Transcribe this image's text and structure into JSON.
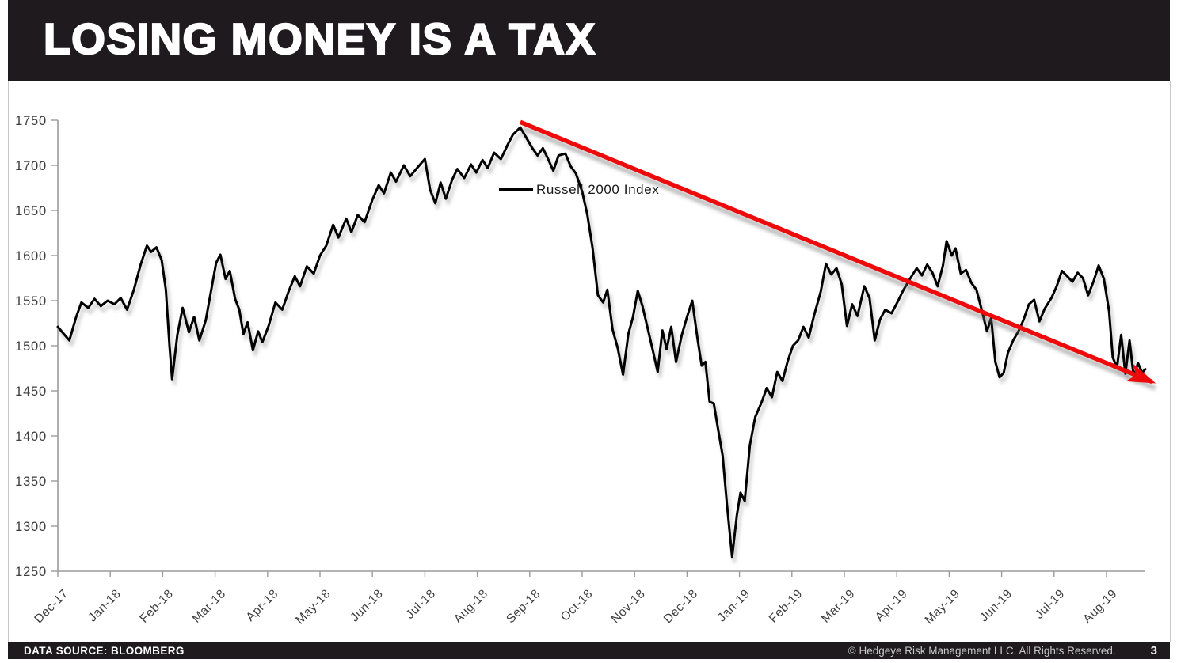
{
  "header": {
    "title": "LOSING MONEY IS A TAX"
  },
  "footer": {
    "data_source": "DATA SOURCE: BLOOMBERG",
    "copyright": "© Hedgeye Risk Management LLC. All Rights Reserved.",
    "page_number": "3"
  },
  "colors": {
    "bar_background": "#1e1a1e",
    "series_line": "#000000",
    "trend_arrow": "#ee0a0a",
    "axis": "#9b9b9b",
    "tick_text": "#3e3e3e"
  },
  "chart_data": {
    "type": "line",
    "title": "",
    "xlabel": "",
    "ylabel": "",
    "grid": false,
    "legend": {
      "label": "Russell 2000 Index",
      "position": "top-center"
    },
    "ylim": [
      1250,
      1750
    ],
    "y_ticks": [
      1250,
      1300,
      1350,
      1400,
      1450,
      1500,
      1550,
      1600,
      1650,
      1700,
      1750
    ],
    "x_tick_labels": [
      "Dec-17",
      "Jan-18",
      "Feb-18",
      "Mar-18",
      "Apr-18",
      "May-18",
      "Jun-18",
      "Jul-18",
      "Aug-18",
      "Sep-18",
      "Oct-18",
      "Nov-18",
      "Dec-18",
      "Jan-19",
      "Feb-19",
      "Mar-19",
      "Apr-19",
      "May-19",
      "Jun-19",
      "Jul-19",
      "Aug-19"
    ],
    "x_unit": "months_since_Dec-17",
    "series": [
      {
        "name": "Russell 2000 Index",
        "color": "#000000",
        "points": [
          [
            0,
            1521
          ],
          [
            0.1,
            1514
          ],
          [
            0.22,
            1506
          ],
          [
            0.35,
            1532
          ],
          [
            0.45,
            1548
          ],
          [
            0.58,
            1542
          ],
          [
            0.7,
            1552
          ],
          [
            0.82,
            1544
          ],
          [
            0.95,
            1550
          ],
          [
            1.08,
            1546
          ],
          [
            1.2,
            1553
          ],
          [
            1.32,
            1540
          ],
          [
            1.45,
            1562
          ],
          [
            1.58,
            1590
          ],
          [
            1.7,
            1611
          ],
          [
            1.78,
            1604
          ],
          [
            1.88,
            1609
          ],
          [
            1.98,
            1595
          ],
          [
            2.06,
            1562
          ],
          [
            2.13,
            1500
          ],
          [
            2.18,
            1463
          ],
          [
            2.28,
            1512
          ],
          [
            2.38,
            1542
          ],
          [
            2.5,
            1515
          ],
          [
            2.6,
            1532
          ],
          [
            2.7,
            1506
          ],
          [
            2.82,
            1528
          ],
          [
            2.92,
            1560
          ],
          [
            3.02,
            1592
          ],
          [
            3.1,
            1601
          ],
          [
            3.2,
            1574
          ],
          [
            3.28,
            1583
          ],
          [
            3.38,
            1552
          ],
          [
            3.46,
            1540
          ],
          [
            3.54,
            1513
          ],
          [
            3.62,
            1526
          ],
          [
            3.72,
            1495
          ],
          [
            3.82,
            1516
          ],
          [
            3.9,
            1504
          ],
          [
            4.02,
            1522
          ],
          [
            4.15,
            1548
          ],
          [
            4.28,
            1540
          ],
          [
            4.4,
            1560
          ],
          [
            4.52,
            1577
          ],
          [
            4.62,
            1566
          ],
          [
            4.75,
            1588
          ],
          [
            4.88,
            1580
          ],
          [
            5,
            1600
          ],
          [
            5.12,
            1611
          ],
          [
            5.25,
            1634
          ],
          [
            5.35,
            1620
          ],
          [
            5.5,
            1641
          ],
          [
            5.6,
            1626
          ],
          [
            5.72,
            1645
          ],
          [
            5.85,
            1637
          ],
          [
            6,
            1662
          ],
          [
            6.12,
            1678
          ],
          [
            6.22,
            1669
          ],
          [
            6.35,
            1692
          ],
          [
            6.45,
            1682
          ],
          [
            6.6,
            1700
          ],
          [
            6.72,
            1688
          ],
          [
            6.85,
            1697
          ],
          [
            7,
            1707
          ],
          [
            7.1,
            1673
          ],
          [
            7.2,
            1658
          ],
          [
            7.3,
            1681
          ],
          [
            7.4,
            1663
          ],
          [
            7.52,
            1684
          ],
          [
            7.62,
            1696
          ],
          [
            7.75,
            1686
          ],
          [
            7.88,
            1701
          ],
          [
            7.98,
            1692
          ],
          [
            8.1,
            1706
          ],
          [
            8.2,
            1697
          ],
          [
            8.32,
            1714
          ],
          [
            8.45,
            1707
          ],
          [
            8.58,
            1723
          ],
          [
            8.68,
            1734
          ],
          [
            8.82,
            1742
          ],
          [
            8.95,
            1729
          ],
          [
            9.05,
            1719
          ],
          [
            9.15,
            1711
          ],
          [
            9.25,
            1719
          ],
          [
            9.35,
            1707
          ],
          [
            9.45,
            1694
          ],
          [
            9.55,
            1711
          ],
          [
            9.68,
            1713
          ],
          [
            9.78,
            1699
          ],
          [
            9.88,
            1691
          ],
          [
            10,
            1671
          ],
          [
            10.1,
            1645
          ],
          [
            10.2,
            1608
          ],
          [
            10.3,
            1556
          ],
          [
            10.4,
            1548
          ],
          [
            10.48,
            1562
          ],
          [
            10.58,
            1518
          ],
          [
            10.68,
            1497
          ],
          [
            10.78,
            1468
          ],
          [
            10.88,
            1513
          ],
          [
            10.97,
            1532
          ],
          [
            11.06,
            1561
          ],
          [
            11.15,
            1544
          ],
          [
            11.25,
            1519
          ],
          [
            11.35,
            1494
          ],
          [
            11.44,
            1471
          ],
          [
            11.53,
            1517
          ],
          [
            11.61,
            1496
          ],
          [
            11.7,
            1521
          ],
          [
            11.79,
            1482
          ],
          [
            11.9,
            1512
          ],
          [
            12,
            1532
          ],
          [
            12.1,
            1550
          ],
          [
            12.2,
            1508
          ],
          [
            12.28,
            1478
          ],
          [
            12.35,
            1482
          ],
          [
            12.43,
            1438
          ],
          [
            12.51,
            1436
          ],
          [
            12.59,
            1408
          ],
          [
            12.68,
            1378
          ],
          [
            12.76,
            1325
          ],
          [
            12.86,
            1266
          ],
          [
            12.95,
            1312
          ],
          [
            13.02,
            1337
          ],
          [
            13.1,
            1328
          ],
          [
            13.2,
            1390
          ],
          [
            13.3,
            1421
          ],
          [
            13.42,
            1437
          ],
          [
            13.52,
            1453
          ],
          [
            13.62,
            1443
          ],
          [
            13.72,
            1471
          ],
          [
            13.82,
            1461
          ],
          [
            13.92,
            1483
          ],
          [
            14.02,
            1500
          ],
          [
            14.12,
            1506
          ],
          [
            14.22,
            1521
          ],
          [
            14.32,
            1509
          ],
          [
            14.42,
            1533
          ],
          [
            14.55,
            1560
          ],
          [
            14.65,
            1591
          ],
          [
            14.75,
            1579
          ],
          [
            14.85,
            1586
          ],
          [
            14.95,
            1568
          ],
          [
            15.05,
            1522
          ],
          [
            15.15,
            1546
          ],
          [
            15.25,
            1533
          ],
          [
            15.38,
            1566
          ],
          [
            15.48,
            1553
          ],
          [
            15.58,
            1506
          ],
          [
            15.68,
            1529
          ],
          [
            15.78,
            1540
          ],
          [
            15.9,
            1536
          ],
          [
            16.02,
            1549
          ],
          [
            16.12,
            1561
          ],
          [
            16.25,
            1574
          ],
          [
            16.38,
            1586
          ],
          [
            16.48,
            1578
          ],
          [
            16.58,
            1590
          ],
          [
            16.68,
            1581
          ],
          [
            16.78,
            1566
          ],
          [
            16.88,
            1589
          ],
          [
            16.95,
            1616
          ],
          [
            17.05,
            1600
          ],
          [
            17.12,
            1608
          ],
          [
            17.22,
            1580
          ],
          [
            17.32,
            1584
          ],
          [
            17.42,
            1570
          ],
          [
            17.52,
            1562
          ],
          [
            17.62,
            1540
          ],
          [
            17.72,
            1516
          ],
          [
            17.8,
            1531
          ],
          [
            17.88,
            1482
          ],
          [
            17.96,
            1465
          ],
          [
            18.04,
            1470
          ],
          [
            18.12,
            1492
          ],
          [
            18.22,
            1506
          ],
          [
            18.32,
            1516
          ],
          [
            18.42,
            1529
          ],
          [
            18.52,
            1546
          ],
          [
            18.62,
            1551
          ],
          [
            18.72,
            1527
          ],
          [
            18.82,
            1541
          ],
          [
            18.95,
            1553
          ],
          [
            19.05,
            1566
          ],
          [
            19.15,
            1583
          ],
          [
            19.25,
            1577
          ],
          [
            19.35,
            1571
          ],
          [
            19.45,
            1581
          ],
          [
            19.55,
            1575
          ],
          [
            19.65,
            1556
          ],
          [
            19.75,
            1571
          ],
          [
            19.85,
            1589
          ],
          [
            19.95,
            1574
          ],
          [
            20.05,
            1538
          ],
          [
            20.12,
            1487
          ],
          [
            20.2,
            1476
          ],
          [
            20.28,
            1512
          ],
          [
            20.36,
            1469
          ],
          [
            20.44,
            1506
          ],
          [
            20.52,
            1465
          ],
          [
            20.6,
            1481
          ],
          [
            20.68,
            1470
          ],
          [
            20.74,
            1474
          ]
        ]
      }
    ],
    "annotation_arrow": {
      "description": "red downtrend arrow from Sep-18 peak to late Aug-19",
      "color": "#ee0a0a",
      "from": [
        8.82,
        1748
      ],
      "to": [
        20.87,
        1460
      ]
    }
  }
}
